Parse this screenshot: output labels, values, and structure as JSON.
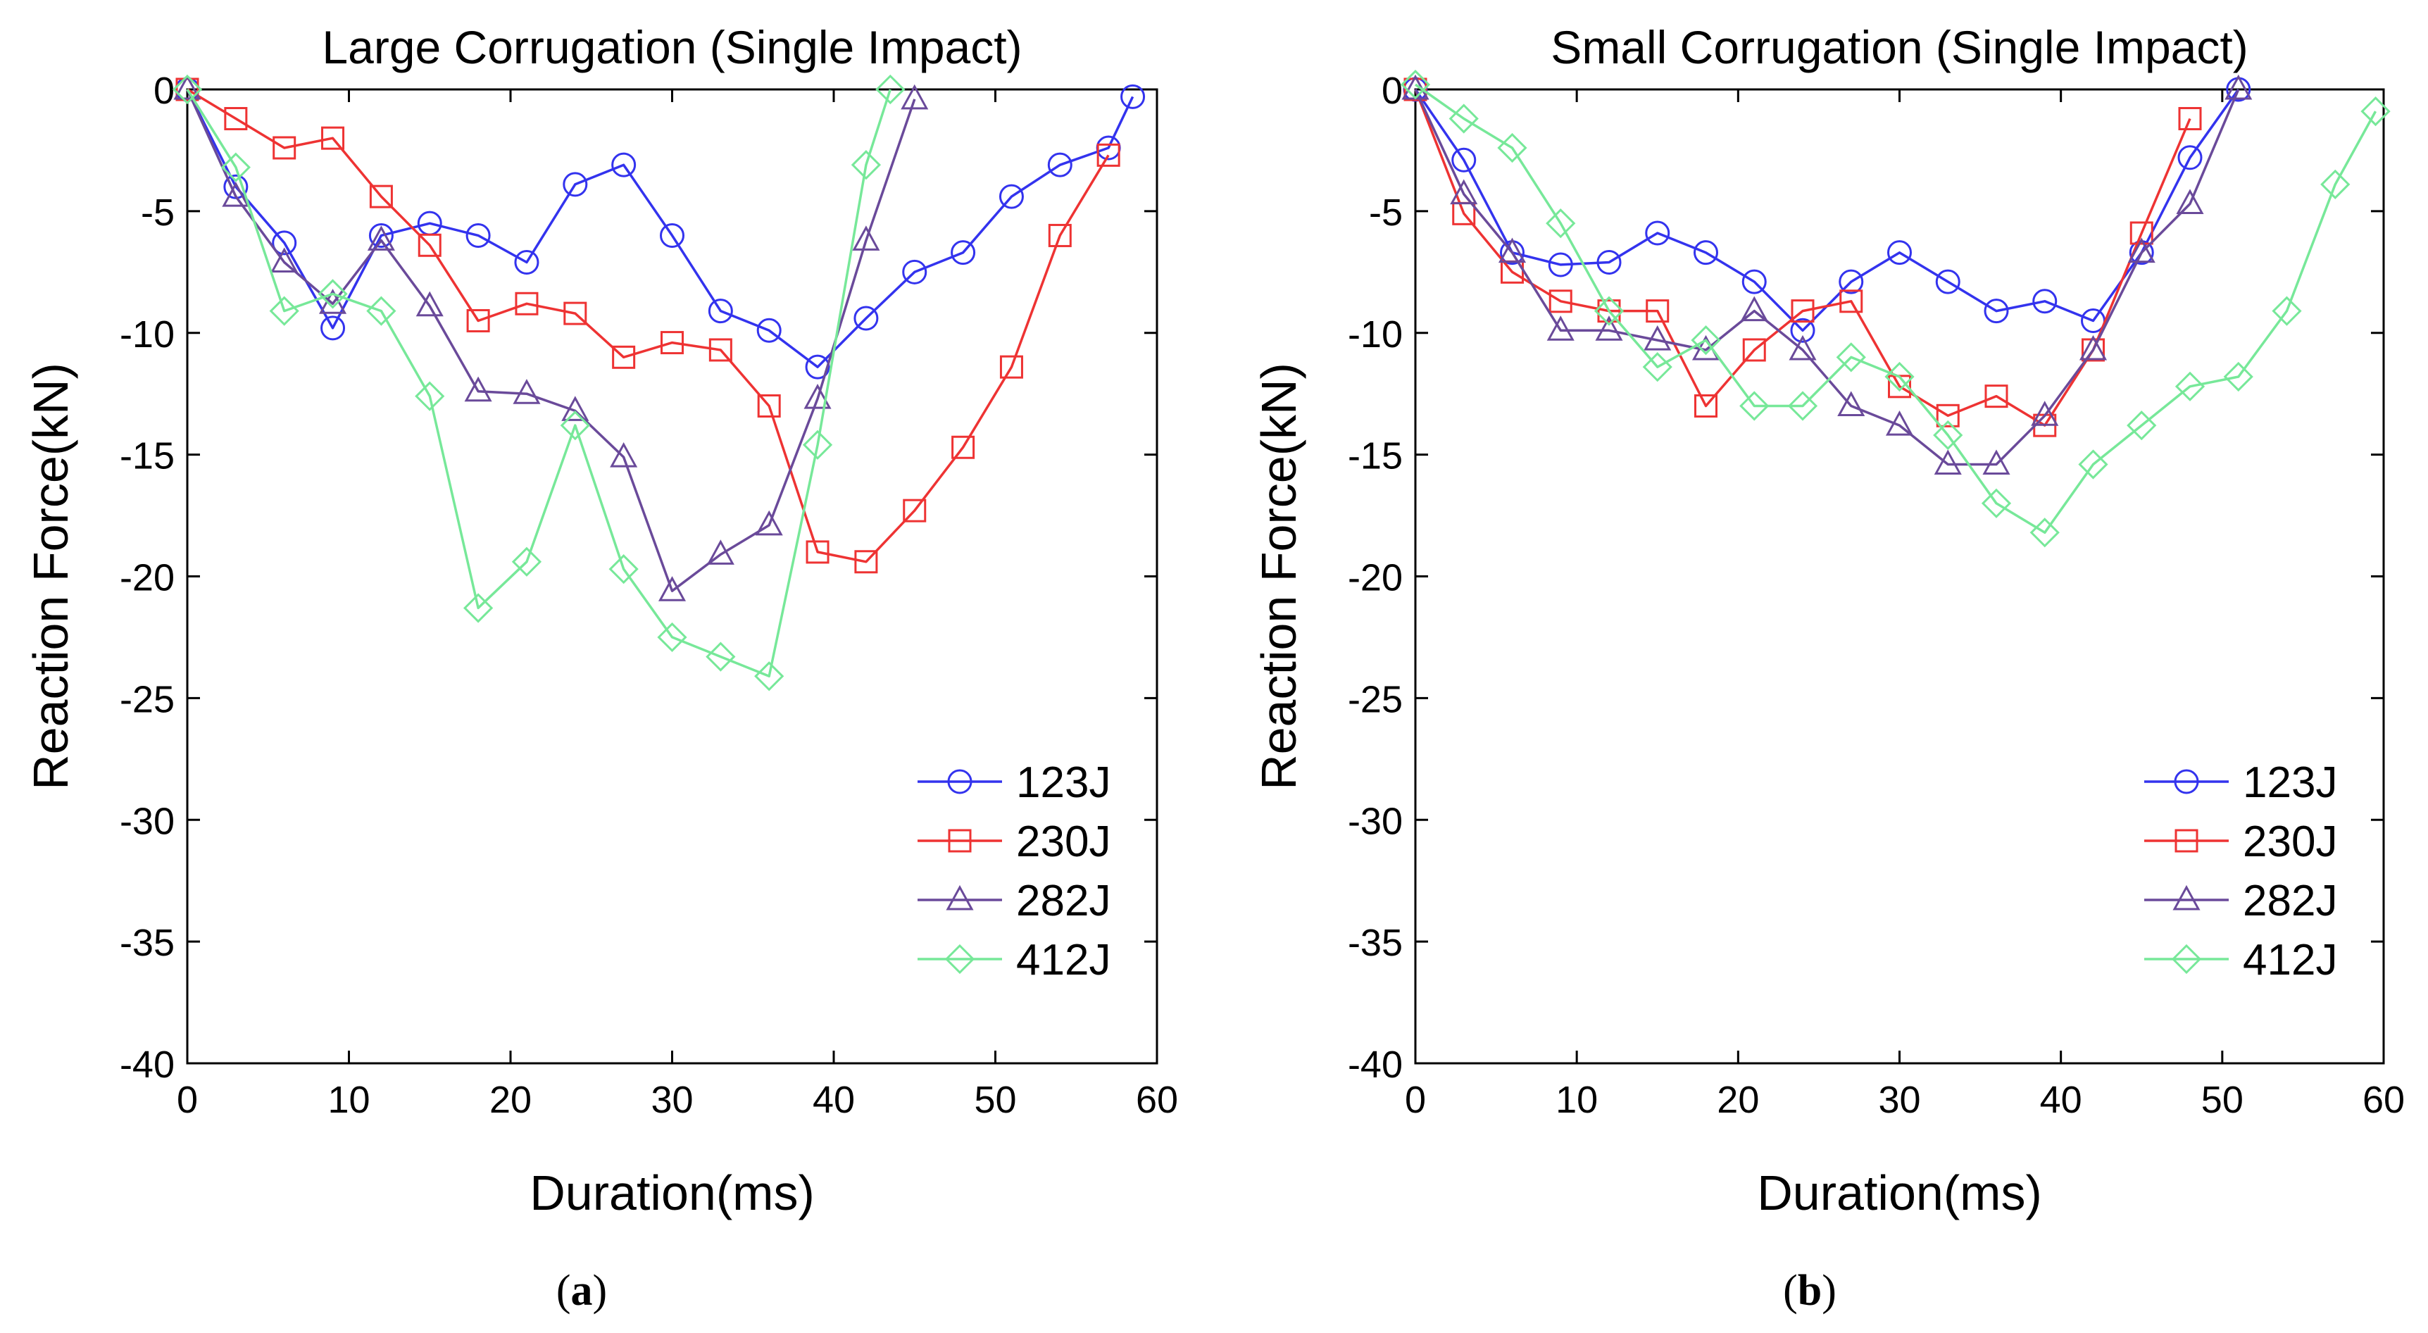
{
  "chart_data": [
    {
      "type": "line",
      "panel_label": "a",
      "title": "Large Corrugation (Single Impact)",
      "xlabel": "Duration(ms)",
      "ylabel": "Reaction Force(kN)",
      "xlim": [
        0,
        60
      ],
      "ylim": [
        -40,
        0
      ],
      "xticks": [
        "0",
        "10",
        "20",
        "30",
        "40",
        "50",
        "60"
      ],
      "yticks": [
        "0",
        "-5",
        "-10",
        "-15",
        "-20",
        "-25",
        "-30",
        "-35",
        "-40"
      ],
      "legend_position": "bottom-right",
      "series": [
        {
          "name": "123J",
          "color": "#3333ee",
          "marker": "circle",
          "x": [
            0,
            3,
            6,
            9,
            12,
            15,
            18,
            21,
            24,
            27,
            30,
            33,
            36,
            39,
            42,
            45,
            48,
            51,
            54,
            57,
            58.5
          ],
          "y": [
            0,
            -4,
            -6.3,
            -9.8,
            -6,
            -5.5,
            -6,
            -7.1,
            -3.9,
            -3.1,
            -6,
            -9.1,
            -9.9,
            -11.4,
            -9.4,
            -7.5,
            -6.7,
            -4.4,
            -3.1,
            -2.4,
            -0.3
          ]
        },
        {
          "name": "230J",
          "color": "#ee3333",
          "marker": "square",
          "x": [
            0,
            3,
            6,
            9,
            12,
            15,
            18,
            21,
            24,
            27,
            30,
            33,
            36,
            39,
            42,
            45,
            48,
            51,
            54,
            57
          ],
          "y": [
            0,
            -1.2,
            -2.4,
            -2,
            -4.4,
            -6.4,
            -9.5,
            -8.8,
            -9.2,
            -11,
            -10.4,
            -10.7,
            -13,
            -19,
            -19.4,
            -17.3,
            -14.7,
            -11.4,
            -6,
            -2.7
          ]
        },
        {
          "name": "282J",
          "color": "#6a4a9a",
          "marker": "triangle",
          "x": [
            0,
            3,
            6,
            9,
            12,
            15,
            18,
            21,
            24,
            27,
            30,
            33,
            36,
            39,
            42,
            45
          ],
          "y": [
            0,
            -4.4,
            -7.1,
            -8.8,
            -6.2,
            -8.9,
            -12.4,
            -12.5,
            -13.2,
            -15.1,
            -20.6,
            -19.1,
            -17.9,
            -12.7,
            -6.2,
            -0.4
          ]
        },
        {
          "name": "412J",
          "color": "#77e899",
          "marker": "diamond",
          "x": [
            0,
            3,
            6,
            9,
            12,
            15,
            18,
            21,
            24,
            27,
            30,
            33,
            36,
            39,
            42,
            43.5
          ],
          "y": [
            0,
            -3.2,
            -9.1,
            -8.4,
            -9.1,
            -12.6,
            -21.3,
            -19.4,
            -13.8,
            -19.7,
            -22.5,
            -23.3,
            -24.1,
            -14.6,
            -3.1,
            0
          ]
        }
      ]
    },
    {
      "type": "line",
      "panel_label": "b",
      "title": "Small Corrugation (Single Impact)",
      "xlabel": "Duration(ms)",
      "ylabel": "Reaction Force(kN)",
      "xlim": [
        0,
        60
      ],
      "ylim": [
        -40,
        0
      ],
      "xticks": [
        "0",
        "10",
        "20",
        "30",
        "40",
        "50",
        "60"
      ],
      "yticks": [
        "0",
        "-5",
        "-10",
        "-15",
        "-20",
        "-25",
        "-30",
        "-35",
        "-40"
      ],
      "legend_position": "bottom-right",
      "series": [
        {
          "name": "123J",
          "color": "#3333ee",
          "marker": "circle",
          "x": [
            0,
            3,
            6,
            9,
            12,
            15,
            18,
            21,
            24,
            27,
            30,
            33,
            36,
            39,
            42,
            45,
            48,
            51
          ],
          "y": [
            0,
            -2.9,
            -6.7,
            -7.2,
            -7.1,
            -5.9,
            -6.7,
            -7.9,
            -9.9,
            -7.9,
            -6.7,
            -7.9,
            -9.1,
            -8.7,
            -9.5,
            -6.7,
            -2.8,
            0
          ]
        },
        {
          "name": "230J",
          "color": "#ee3333",
          "marker": "square",
          "x": [
            0,
            3,
            6,
            9,
            12,
            15,
            18,
            21,
            24,
            27,
            30,
            33,
            36,
            39,
            42,
            45,
            48
          ],
          "y": [
            0,
            -5.1,
            -7.5,
            -8.7,
            -9.1,
            -9.1,
            -13,
            -10.7,
            -9.1,
            -8.7,
            -12.2,
            -13.4,
            -12.6,
            -13.8,
            -10.7,
            -5.9,
            -1.2
          ]
        },
        {
          "name": "282J",
          "color": "#6a4a9a",
          "marker": "triangle",
          "x": [
            0,
            3,
            6,
            9,
            12,
            15,
            18,
            21,
            24,
            27,
            30,
            33,
            36,
            39,
            42,
            45,
            48,
            51
          ],
          "y": [
            0,
            -4.3,
            -6.7,
            -9.9,
            -9.9,
            -10.3,
            -10.7,
            -9.1,
            -10.7,
            -13,
            -13.8,
            -15.4,
            -15.4,
            -13.4,
            -10.7,
            -6.7,
            -4.7,
            0
          ]
        },
        {
          "name": "412J",
          "color": "#77e899",
          "marker": "diamond",
          "x": [
            0,
            3,
            6,
            9,
            12,
            15,
            18,
            21,
            24,
            27,
            30,
            33,
            36,
            39,
            42,
            45,
            48,
            51,
            54,
            57,
            59.5
          ],
          "y": [
            0.2,
            -1.2,
            -2.4,
            -5.5,
            -9.1,
            -11.4,
            -10.3,
            -13,
            -13,
            -11,
            -11.8,
            -14.2,
            -17,
            -18.2,
            -15.4,
            -13.8,
            -12.2,
            -11.8,
            -9.1,
            -3.9,
            -0.9
          ]
        }
      ]
    }
  ]
}
